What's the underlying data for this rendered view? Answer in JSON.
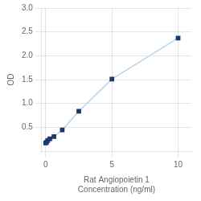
{
  "chart_data": {
    "type": "line",
    "x_label": "Rat Angiopoietin 1\nConcentration (ng/ml)",
    "y_label": "OD",
    "x": [
      0,
      0.078,
      0.156,
      0.313,
      0.625,
      1.25,
      2.5,
      5,
      10
    ],
    "series": [
      {
        "values": [
          0.171,
          0.191,
          0.224,
          0.261,
          0.305,
          0.445,
          0.838,
          1.51,
          2.37
        ],
        "color": "#b8d4ea",
        "colors": [
          "#1a3a6b",
          "#1a3a6b",
          "#1a3a6b",
          "#1a3a6b",
          "#1a3a6b",
          "#1a3a6b",
          "#1a3a6b",
          "#1a3a6b",
          "#1a3a6b"
        ],
        "marker": "square"
      }
    ],
    "xlim": [
      -0.3,
      11
    ],
    "xticks": [
      0,
      5,
      10
    ],
    "ylim": [
      0,
      3.0
    ],
    "yticks": [
      0.5,
      {
        "value": 1.0,
        "label": "1.0"
      },
      1.5,
      {
        "value": 2.0,
        "label": "2.0"
      },
      2.5,
      {
        "value": 3.0,
        "label": "3.0"
      }
    ],
    "grid": true
  }
}
